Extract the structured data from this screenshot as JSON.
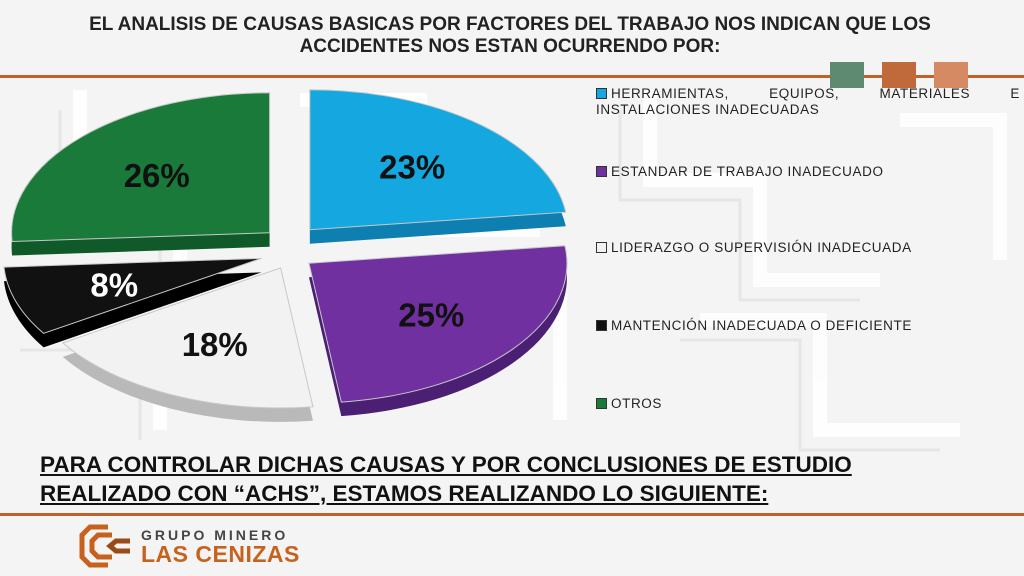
{
  "header": {
    "title_line1": "EL ANALISIS DE CAUSAS  BASICAS POR FACTORES DEL TRABAJO NOS INDICAN QUE LOS",
    "title_line2": "ACCIDENTES NOS ESTAN OCURRENDO POR:"
  },
  "colors": {
    "rule": "#c0612a",
    "chip_1": "#5f8a72",
    "chip_2": "#c06a3c",
    "chip_3": "#d58a63",
    "logo_orange": "#c7621e"
  },
  "chart_data": {
    "type": "pie",
    "style": "3d-exploded",
    "legend_position": "right",
    "slices": [
      {
        "label": "HERRAMIENTAS,  EQUIPOS,  MATERIALES  E INSTALACIONES INADECUADAS",
        "value": 23,
        "display": "23%",
        "color": "#15a8e0"
      },
      {
        "label": "ESTANDAR DE TRABAJO INADECUADO",
        "value": 25,
        "display": "25%",
        "color": "#7030a0"
      },
      {
        "label": "LIDERAZGO  O  SUPERVISIÓN  INADECUADA",
        "value": 18,
        "display": "18%",
        "color": "#f2f2f2"
      },
      {
        "label": "MANTENCIÓN  INADECUADA  O  DEFICIENTE",
        "value": 8,
        "display": "8%",
        "color": "#111111"
      },
      {
        "label": "OTROS",
        "value": 26,
        "display": "26%",
        "color": "#1a7a3a"
      }
    ]
  },
  "conclusion": {
    "line1": "PARA CONTROLAR DICHAS CAUSAS Y POR CONCLUSIONES DE ESTUDIO",
    "line2": "REALIZADO CON “ACHS”,  ESTAMOS REALIZANDO LO SIGUIENTE:"
  },
  "logo": {
    "line1": "GRUPO MINERO",
    "line2": "LAS CENIZAS"
  }
}
